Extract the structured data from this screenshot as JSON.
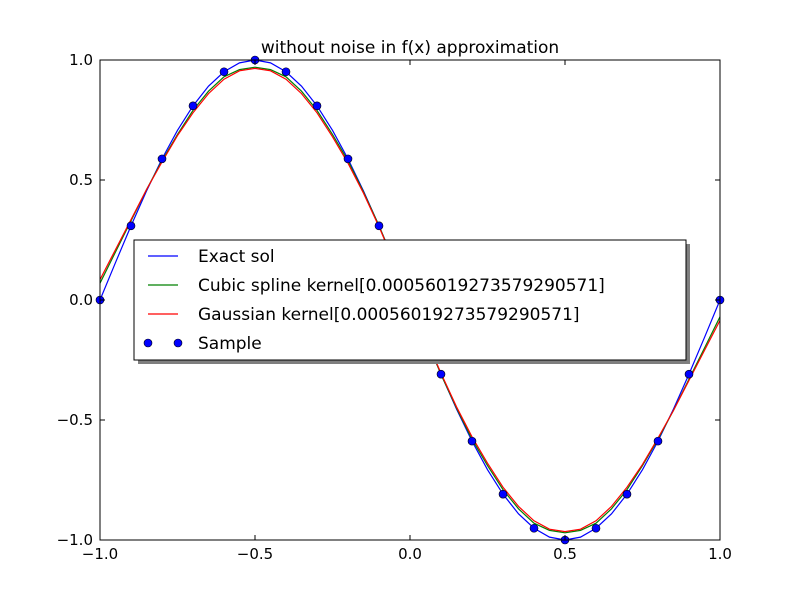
{
  "chart_data": {
    "type": "line",
    "title": "without noise in f(x) approximation",
    "xlabel": "",
    "ylabel": "",
    "xlim": [
      -1.0,
      1.0
    ],
    "ylim": [
      -1.0,
      1.0
    ],
    "grid": false,
    "legend_placement": "center-left",
    "x_ticks": [
      -1.0,
      -0.5,
      0.0,
      0.5,
      1.0
    ],
    "x_tick_labels": [
      "−1.0",
      "−0.5",
      "0.0",
      "0.5",
      "1.0"
    ],
    "y_ticks": [
      -1.0,
      -0.5,
      0.0,
      0.5,
      1.0
    ],
    "y_tick_labels": [
      "−1.0",
      "−0.5",
      "0.0",
      "0.5",
      "1.0"
    ],
    "series": [
      {
        "name": "Exact sol",
        "kind": "line",
        "color": "#0000ff",
        "x": [
          -1.0,
          -0.95,
          -0.9,
          -0.85,
          -0.8,
          -0.75,
          -0.7,
          -0.65,
          -0.6,
          -0.55,
          -0.5,
          -0.45,
          -0.4,
          -0.35,
          -0.3,
          -0.25,
          -0.2,
          -0.15,
          -0.1,
          -0.05,
          0.0,
          0.05,
          0.1,
          0.15,
          0.2,
          0.25,
          0.3,
          0.35,
          0.4,
          0.45,
          0.5,
          0.55,
          0.6,
          0.65,
          0.7,
          0.75,
          0.8,
          0.85,
          0.9,
          0.95,
          1.0
        ],
        "y": [
          0.0,
          0.156,
          0.309,
          0.454,
          0.588,
          0.707,
          0.809,
          0.891,
          0.951,
          0.988,
          1.0,
          0.988,
          0.951,
          0.891,
          0.809,
          0.707,
          0.588,
          0.454,
          0.309,
          0.156,
          0.0,
          -0.156,
          -0.309,
          -0.454,
          -0.588,
          -0.707,
          -0.809,
          -0.891,
          -0.951,
          -0.988,
          -1.0,
          -0.988,
          -0.951,
          -0.891,
          -0.809,
          -0.707,
          -0.588,
          -0.454,
          -0.309,
          -0.156,
          0.0
        ]
      },
      {
        "name": "Cubic spline kernel[0.000560192735792905​71]",
        "kind": "line",
        "color": "#008000",
        "x": [
          -1.0,
          -0.95,
          -0.9,
          -0.85,
          -0.8,
          -0.75,
          -0.7,
          -0.65,
          -0.6,
          -0.55,
          -0.5,
          -0.45,
          -0.4,
          -0.35,
          -0.3,
          -0.25,
          -0.2,
          -0.15,
          -0.1,
          -0.05,
          0.0,
          0.05,
          0.1,
          0.15,
          0.2,
          0.25,
          0.3,
          0.35,
          0.4,
          0.45,
          0.5,
          0.55,
          0.6,
          0.65,
          0.7,
          0.75,
          0.8,
          0.85,
          0.9,
          0.95,
          1.0
        ],
        "y": [
          0.07,
          0.2,
          0.33,
          0.46,
          0.58,
          0.69,
          0.79,
          0.87,
          0.93,
          0.96,
          0.97,
          0.96,
          0.93,
          0.87,
          0.79,
          0.69,
          0.58,
          0.45,
          0.31,
          0.155,
          0.0,
          -0.155,
          -0.31,
          -0.45,
          -0.58,
          -0.69,
          -0.79,
          -0.87,
          -0.93,
          -0.96,
          -0.97,
          -0.96,
          -0.93,
          -0.87,
          -0.79,
          -0.69,
          -0.58,
          -0.46,
          -0.33,
          -0.2,
          -0.07
        ]
      },
      {
        "name": "Gaussian kernel[0.000560192735792905​71]",
        "kind": "line",
        "color": "#ff0000",
        "x": [
          -1.0,
          -0.95,
          -0.9,
          -0.85,
          -0.8,
          -0.75,
          -0.7,
          -0.65,
          -0.6,
          -0.55,
          -0.5,
          -0.45,
          -0.4,
          -0.35,
          -0.3,
          -0.25,
          -0.2,
          -0.15,
          -0.1,
          -0.05,
          0.0,
          0.05,
          0.1,
          0.15,
          0.2,
          0.25,
          0.3,
          0.35,
          0.4,
          0.45,
          0.5,
          0.55,
          0.6,
          0.65,
          0.7,
          0.75,
          0.8,
          0.85,
          0.9,
          0.95,
          1.0
        ],
        "y": [
          0.085,
          0.21,
          0.335,
          0.46,
          0.575,
          0.685,
          0.78,
          0.86,
          0.92,
          0.955,
          0.965,
          0.955,
          0.92,
          0.86,
          0.78,
          0.68,
          0.57,
          0.445,
          0.305,
          0.155,
          0.0,
          -0.155,
          -0.305,
          -0.445,
          -0.57,
          -0.68,
          -0.78,
          -0.86,
          -0.92,
          -0.955,
          -0.965,
          -0.955,
          -0.92,
          -0.86,
          -0.78,
          -0.685,
          -0.575,
          -0.46,
          -0.335,
          -0.21,
          -0.085
        ]
      },
      {
        "name": "Sample",
        "kind": "scatter",
        "color": "#0000ff",
        "x": [
          -1.0,
          -0.9,
          -0.8,
          -0.7,
          -0.6,
          -0.5,
          -0.4,
          -0.3,
          -0.2,
          -0.1,
          0.0,
          0.1,
          0.2,
          0.3,
          0.4,
          0.5,
          0.6,
          0.7,
          0.8,
          0.9,
          1.0
        ],
        "y": [
          0.0,
          0.309,
          0.588,
          0.809,
          0.951,
          1.0,
          0.951,
          0.809,
          0.588,
          0.309,
          0.0,
          -0.309,
          -0.588,
          -0.809,
          -0.951,
          -1.0,
          -0.951,
          -0.809,
          -0.588,
          -0.309,
          0.0
        ]
      }
    ],
    "legend": [
      "Exact sol",
      "Cubic spline kernel[0.00056019273579290571]",
      "Gaussian kernel[0.00056019273579290571]",
      "Sample"
    ]
  }
}
